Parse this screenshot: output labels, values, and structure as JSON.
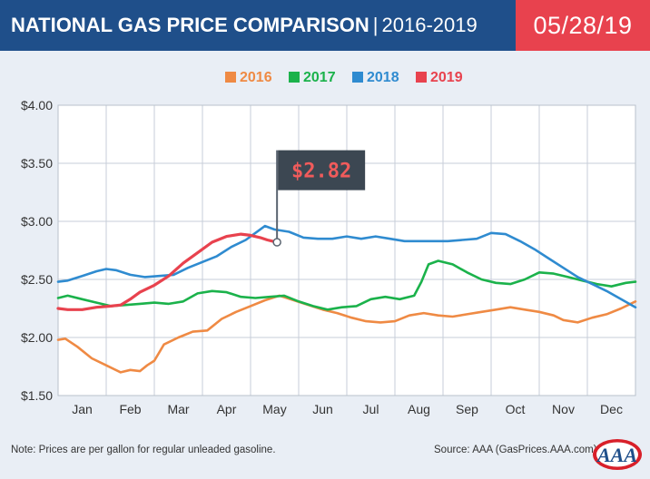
{
  "header": {
    "title": "NATIONAL GAS PRICE COMPARISON",
    "separator": "|",
    "years_range": "2016-2019",
    "date": "05/28/19"
  },
  "colors": {
    "header_bg": "#1f4f8a",
    "date_bg": "#e8424e",
    "plot_bg": "#ffffff",
    "grid": "#c7ced8",
    "y2016": "#ef8a44",
    "y2017": "#1bb24b",
    "y2018": "#2f8bd0",
    "y2019": "#e8424e",
    "callout_bg": "#3c4752",
    "callout_text": "#f15b5b"
  },
  "chart_data": {
    "type": "line",
    "title": "NATIONAL GAS PRICE COMPARISON | 2016-2019",
    "xlabel": "",
    "ylabel": "",
    "x_ticks": [
      "Jan",
      "Feb",
      "Mar",
      "Apr",
      "May",
      "Jun",
      "Jul",
      "Aug",
      "Sep",
      "Oct",
      "Nov",
      "Dec"
    ],
    "y_ticks": [
      "$1.50",
      "$2.00",
      "$2.50",
      "$3.00",
      "$3.50",
      "$4.00"
    ],
    "ylim": [
      1.5,
      4.0
    ],
    "xlim": [
      1,
      13
    ],
    "grid": true,
    "legend_position": "top",
    "series": [
      {
        "name": "2016",
        "color": "#ef8a44",
        "points": [
          [
            1,
            1.98
          ],
          [
            1.15,
            1.99
          ],
          [
            1.4,
            1.92
          ],
          [
            1.7,
            1.82
          ],
          [
            2.0,
            1.76
          ],
          [
            2.3,
            1.7
          ],
          [
            2.5,
            1.72
          ],
          [
            2.7,
            1.71
          ],
          [
            2.85,
            1.76
          ],
          [
            3.0,
            1.8
          ],
          [
            3.2,
            1.94
          ],
          [
            3.5,
            2.0
          ],
          [
            3.8,
            2.05
          ],
          [
            4.1,
            2.06
          ],
          [
            4.4,
            2.16
          ],
          [
            4.7,
            2.22
          ],
          [
            5.0,
            2.27
          ],
          [
            5.3,
            2.32
          ],
          [
            5.6,
            2.36
          ],
          [
            5.9,
            2.32
          ],
          [
            6.2,
            2.28
          ],
          [
            6.5,
            2.24
          ],
          [
            6.8,
            2.21
          ],
          [
            7.1,
            2.17
          ],
          [
            7.4,
            2.14
          ],
          [
            7.7,
            2.13
          ],
          [
            8.0,
            2.14
          ],
          [
            8.3,
            2.19
          ],
          [
            8.6,
            2.21
          ],
          [
            8.9,
            2.19
          ],
          [
            9.2,
            2.18
          ],
          [
            9.5,
            2.2
          ],
          [
            9.8,
            2.22
          ],
          [
            10.1,
            2.24
          ],
          [
            10.4,
            2.26
          ],
          [
            10.7,
            2.24
          ],
          [
            11.0,
            2.22
          ],
          [
            11.3,
            2.19
          ],
          [
            11.5,
            2.15
          ],
          [
            11.8,
            2.13
          ],
          [
            12.1,
            2.17
          ],
          [
            12.4,
            2.2
          ],
          [
            12.7,
            2.25
          ],
          [
            13.0,
            2.31
          ]
        ]
      },
      {
        "name": "2017",
        "color": "#1bb24b",
        "points": [
          [
            1,
            2.34
          ],
          [
            1.2,
            2.36
          ],
          [
            1.5,
            2.33
          ],
          [
            1.8,
            2.3
          ],
          [
            2.1,
            2.27
          ],
          [
            2.4,
            2.28
          ],
          [
            2.7,
            2.29
          ],
          [
            3.0,
            2.3
          ],
          [
            3.3,
            2.29
          ],
          [
            3.6,
            2.31
          ],
          [
            3.9,
            2.38
          ],
          [
            4.2,
            2.4
          ],
          [
            4.5,
            2.39
          ],
          [
            4.8,
            2.35
          ],
          [
            5.1,
            2.34
          ],
          [
            5.4,
            2.35
          ],
          [
            5.7,
            2.36
          ],
          [
            6.0,
            2.31
          ],
          [
            6.3,
            2.27
          ],
          [
            6.6,
            2.24
          ],
          [
            6.9,
            2.26
          ],
          [
            7.2,
            2.27
          ],
          [
            7.5,
            2.33
          ],
          [
            7.8,
            2.35
          ],
          [
            8.1,
            2.33
          ],
          [
            8.4,
            2.36
          ],
          [
            8.55,
            2.48
          ],
          [
            8.7,
            2.63
          ],
          [
            8.9,
            2.66
          ],
          [
            9.2,
            2.63
          ],
          [
            9.5,
            2.56
          ],
          [
            9.8,
            2.5
          ],
          [
            10.1,
            2.47
          ],
          [
            10.4,
            2.46
          ],
          [
            10.7,
            2.5
          ],
          [
            11.0,
            2.56
          ],
          [
            11.3,
            2.55
          ],
          [
            11.6,
            2.52
          ],
          [
            11.9,
            2.49
          ],
          [
            12.2,
            2.46
          ],
          [
            12.5,
            2.44
          ],
          [
            12.8,
            2.47
          ],
          [
            13.0,
            2.48
          ]
        ]
      },
      {
        "name": "2018",
        "color": "#2f8bd0",
        "points": [
          [
            1,
            2.48
          ],
          [
            1.2,
            2.49
          ],
          [
            1.5,
            2.53
          ],
          [
            1.8,
            2.57
          ],
          [
            2.0,
            2.59
          ],
          [
            2.2,
            2.58
          ],
          [
            2.5,
            2.54
          ],
          [
            2.8,
            2.52
          ],
          [
            3.1,
            2.53
          ],
          [
            3.4,
            2.54
          ],
          [
            3.7,
            2.6
          ],
          [
            4.0,
            2.65
          ],
          [
            4.3,
            2.7
          ],
          [
            4.6,
            2.78
          ],
          [
            4.9,
            2.84
          ],
          [
            5.1,
            2.9
          ],
          [
            5.3,
            2.96
          ],
          [
            5.5,
            2.93
          ],
          [
            5.8,
            2.91
          ],
          [
            6.1,
            2.86
          ],
          [
            6.4,
            2.85
          ],
          [
            6.7,
            2.85
          ],
          [
            7.0,
            2.87
          ],
          [
            7.3,
            2.85
          ],
          [
            7.6,
            2.87
          ],
          [
            7.9,
            2.85
          ],
          [
            8.2,
            2.83
          ],
          [
            8.5,
            2.83
          ],
          [
            8.8,
            2.83
          ],
          [
            9.1,
            2.83
          ],
          [
            9.4,
            2.84
          ],
          [
            9.7,
            2.85
          ],
          [
            10.0,
            2.9
          ],
          [
            10.3,
            2.89
          ],
          [
            10.6,
            2.83
          ],
          [
            10.9,
            2.76
          ],
          [
            11.2,
            2.68
          ],
          [
            11.5,
            2.6
          ],
          [
            11.8,
            2.52
          ],
          [
            12.1,
            2.46
          ],
          [
            12.4,
            2.4
          ],
          [
            12.7,
            2.33
          ],
          [
            13.0,
            2.26
          ]
        ]
      },
      {
        "name": "2019",
        "color": "#e8424e",
        "points": [
          [
            1,
            2.25
          ],
          [
            1.2,
            2.24
          ],
          [
            1.5,
            2.24
          ],
          [
            1.8,
            2.26
          ],
          [
            2.1,
            2.27
          ],
          [
            2.3,
            2.28
          ],
          [
            2.5,
            2.33
          ],
          [
            2.7,
            2.39
          ],
          [
            3.0,
            2.45
          ],
          [
            3.3,
            2.53
          ],
          [
            3.6,
            2.64
          ],
          [
            3.9,
            2.73
          ],
          [
            4.2,
            2.82
          ],
          [
            4.5,
            2.87
          ],
          [
            4.8,
            2.89
          ],
          [
            5.0,
            2.88
          ],
          [
            5.2,
            2.86
          ],
          [
            5.35,
            2.84
          ],
          [
            5.45,
            2.83
          ],
          [
            5.55,
            2.82
          ]
        ]
      }
    ],
    "annotations": [
      {
        "text": "$2.82",
        "x": 5.55,
        "y": 2.82,
        "series": "2019"
      }
    ]
  },
  "footer": {
    "note": "Note: Prices are per gallon for regular unleaded gasoline.",
    "source": "Source: AAA (GasPrices.AAA.com)",
    "logo_text": "AAA"
  }
}
